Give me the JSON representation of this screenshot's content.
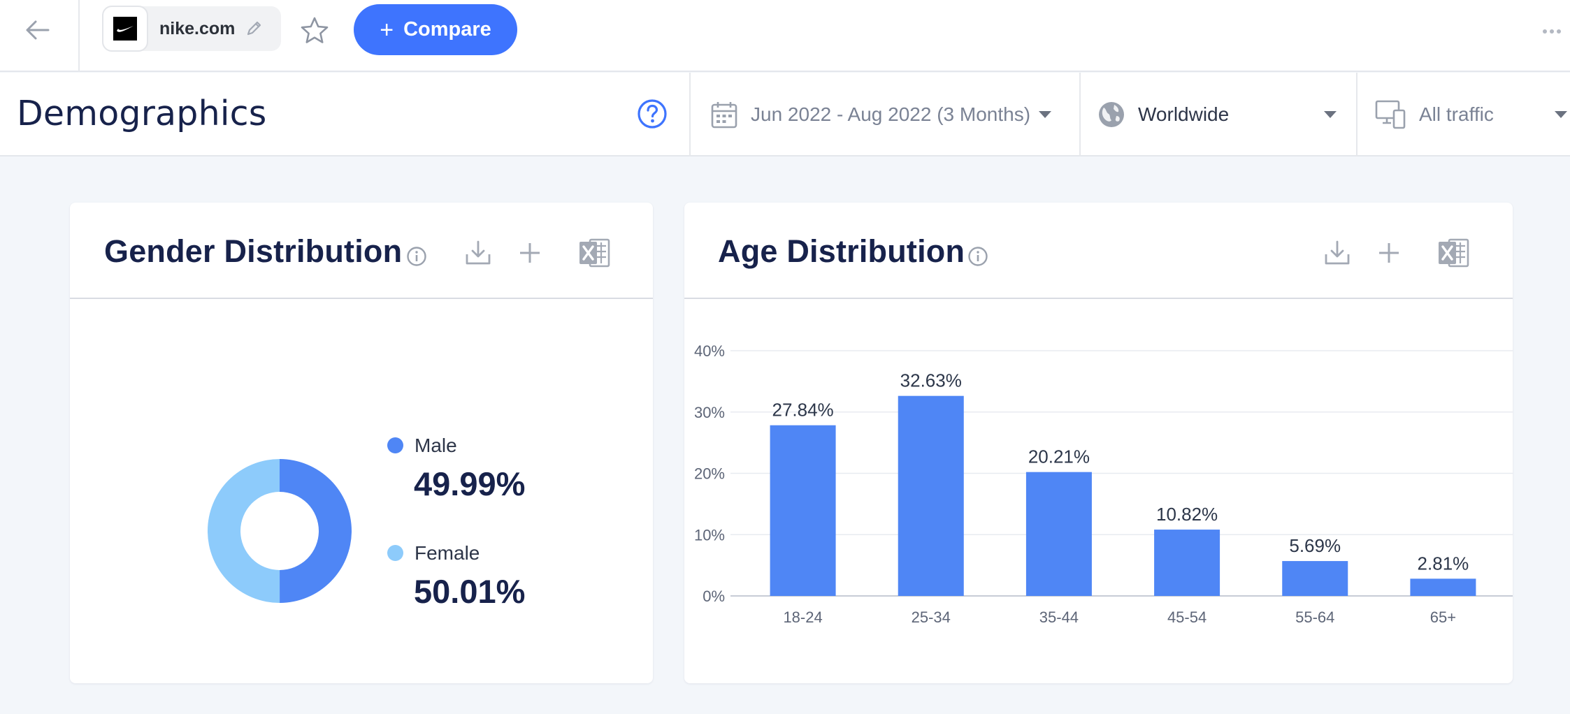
{
  "topbar": {
    "site_name": "nike.com",
    "compare_label": "Compare",
    "compare_plus": "+"
  },
  "header": {
    "title": "Demographics",
    "date_range": "Jun 2022 - Aug 2022 (3 Months)",
    "region": "Worldwide",
    "traffic": "All traffic"
  },
  "gender": {
    "title": "Gender Distribution",
    "male_label": "Male",
    "male_value": "49.99%",
    "female_label": "Female",
    "female_value": "50.01%",
    "colors": {
      "male": "#4f86f5",
      "female": "#8dcbfb"
    }
  },
  "age": {
    "title": "Age Distribution"
  },
  "chart_data": [
    {
      "type": "pie",
      "title": "Gender Distribution",
      "categories": [
        "Male",
        "Female"
      ],
      "values": [
        49.99,
        50.01
      ],
      "unit": "%",
      "colors": [
        "#4f86f5",
        "#8dcbfb"
      ],
      "legend": "right"
    },
    {
      "type": "bar",
      "title": "Age Distribution",
      "categories": [
        "18-24",
        "25-34",
        "35-44",
        "45-54",
        "55-64",
        "65+"
      ],
      "values": [
        27.84,
        32.63,
        20.21,
        10.82,
        5.69,
        2.81
      ],
      "data_labels": [
        "27.84%",
        "32.63%",
        "20.21%",
        "10.82%",
        "5.69%",
        "2.81%"
      ],
      "yticks": [
        "0%",
        "10%",
        "20%",
        "30%",
        "40%"
      ],
      "ylim": [
        0,
        40
      ],
      "grid": true,
      "color": "#4f86f5"
    }
  ]
}
